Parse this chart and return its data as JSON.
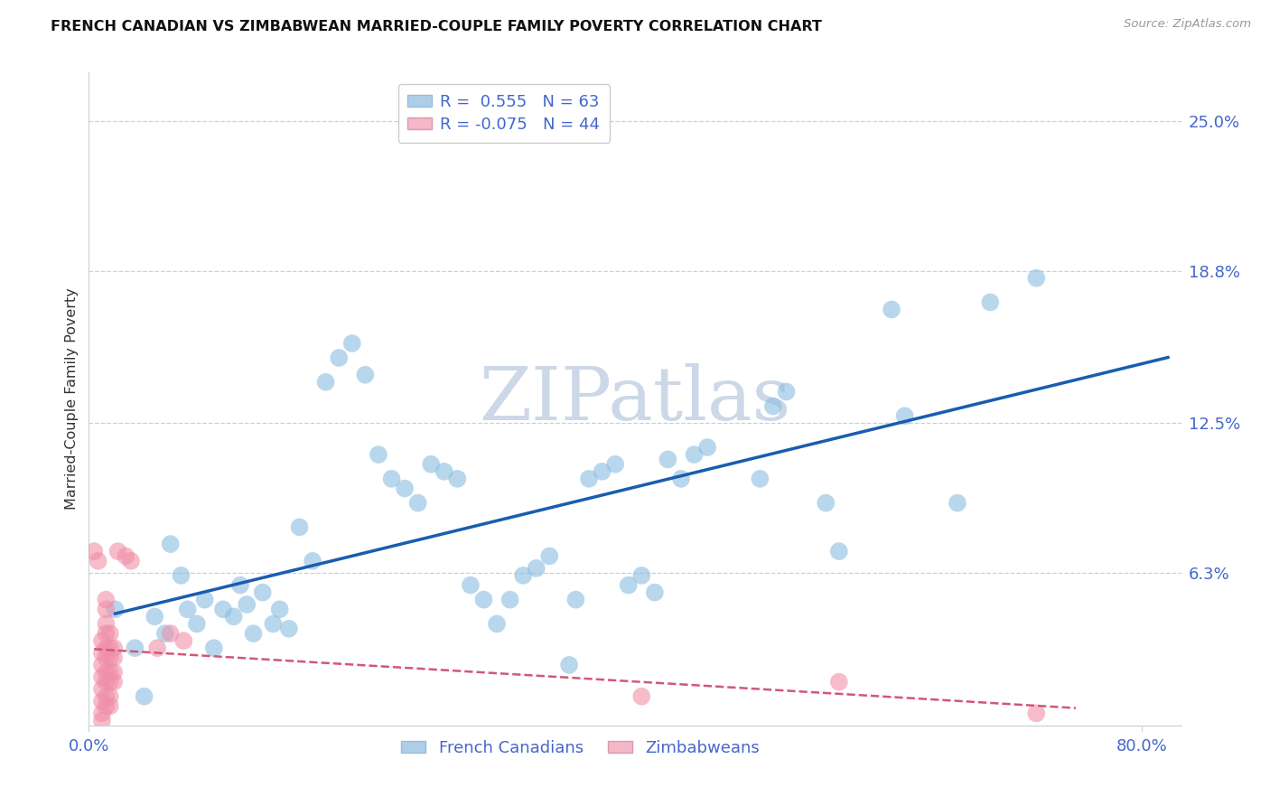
{
  "title": "FRENCH CANADIAN VS ZIMBABWEAN MARRIED-COUPLE FAMILY POVERTY CORRELATION CHART",
  "source": "Source: ZipAtlas.com",
  "ylabel_label": "Married-Couple Family Poverty",
  "ylabel_values": [
    0.0,
    6.3,
    12.5,
    18.8,
    25.0
  ],
  "xlabel_values": [
    0.0,
    80.0
  ],
  "blue_scatter_color": "#8bbde0",
  "pink_scatter_color": "#f090a8",
  "blue_line_color": "#1a5cb0",
  "pink_line_color": "#d05878",
  "legend_blue_fill": "#aecde8",
  "legend_pink_fill": "#f4b8c8",
  "blue_scatter": [
    [
      2.0,
      4.8
    ],
    [
      3.5,
      3.2
    ],
    [
      4.2,
      1.2
    ],
    [
      5.0,
      4.5
    ],
    [
      5.8,
      3.8
    ],
    [
      6.2,
      7.5
    ],
    [
      7.0,
      6.2
    ],
    [
      7.5,
      4.8
    ],
    [
      8.2,
      4.2
    ],
    [
      8.8,
      5.2
    ],
    [
      9.5,
      3.2
    ],
    [
      10.2,
      4.8
    ],
    [
      11.0,
      4.5
    ],
    [
      11.5,
      5.8
    ],
    [
      12.0,
      5.0
    ],
    [
      12.5,
      3.8
    ],
    [
      13.2,
      5.5
    ],
    [
      14.0,
      4.2
    ],
    [
      14.5,
      4.8
    ],
    [
      15.2,
      4.0
    ],
    [
      16.0,
      8.2
    ],
    [
      17.0,
      6.8
    ],
    [
      18.0,
      14.2
    ],
    [
      19.0,
      15.2
    ],
    [
      20.0,
      15.8
    ],
    [
      21.0,
      14.5
    ],
    [
      22.0,
      11.2
    ],
    [
      23.0,
      10.2
    ],
    [
      24.0,
      9.8
    ],
    [
      25.0,
      9.2
    ],
    [
      26.0,
      10.8
    ],
    [
      27.0,
      10.5
    ],
    [
      28.0,
      10.2
    ],
    [
      29.0,
      5.8
    ],
    [
      30.0,
      5.2
    ],
    [
      31.0,
      4.2
    ],
    [
      32.0,
      5.2
    ],
    [
      33.0,
      6.2
    ],
    [
      34.0,
      6.5
    ],
    [
      35.0,
      7.0
    ],
    [
      36.5,
      2.5
    ],
    [
      37.0,
      5.2
    ],
    [
      38.0,
      10.2
    ],
    [
      39.0,
      10.5
    ],
    [
      40.0,
      10.8
    ],
    [
      41.0,
      5.8
    ],
    [
      42.0,
      6.2
    ],
    [
      43.0,
      5.5
    ],
    [
      44.0,
      11.0
    ],
    [
      45.0,
      10.2
    ],
    [
      46.0,
      11.2
    ],
    [
      47.0,
      11.5
    ],
    [
      51.0,
      10.2
    ],
    [
      52.0,
      13.2
    ],
    [
      53.0,
      13.8
    ],
    [
      56.0,
      9.2
    ],
    [
      57.0,
      7.2
    ],
    [
      61.0,
      17.2
    ],
    [
      62.0,
      12.8
    ],
    [
      66.0,
      9.2
    ],
    [
      68.5,
      17.5
    ],
    [
      72.0,
      18.5
    ]
  ],
  "pink_scatter": [
    [
      0.4,
      7.2
    ],
    [
      0.7,
      6.8
    ],
    [
      1.0,
      3.5
    ],
    [
      1.0,
      3.0
    ],
    [
      1.0,
      2.5
    ],
    [
      1.0,
      2.0
    ],
    [
      1.0,
      1.5
    ],
    [
      1.0,
      1.0
    ],
    [
      1.0,
      0.5
    ],
    [
      1.0,
      0.2
    ],
    [
      1.3,
      5.2
    ],
    [
      1.3,
      4.8
    ],
    [
      1.3,
      4.2
    ],
    [
      1.3,
      3.8
    ],
    [
      1.3,
      3.2
    ],
    [
      1.3,
      2.8
    ],
    [
      1.3,
      2.2
    ],
    [
      1.3,
      1.8
    ],
    [
      1.3,
      1.2
    ],
    [
      1.3,
      0.8
    ],
    [
      1.6,
      3.8
    ],
    [
      1.6,
      3.2
    ],
    [
      1.6,
      2.8
    ],
    [
      1.6,
      2.2
    ],
    [
      1.6,
      1.8
    ],
    [
      1.6,
      1.2
    ],
    [
      1.6,
      0.8
    ],
    [
      1.9,
      3.2
    ],
    [
      1.9,
      2.8
    ],
    [
      1.9,
      2.2
    ],
    [
      1.9,
      1.8
    ],
    [
      2.2,
      7.2
    ],
    [
      2.8,
      7.0
    ],
    [
      3.2,
      6.8
    ],
    [
      5.2,
      3.2
    ],
    [
      6.2,
      3.8
    ],
    [
      7.2,
      3.5
    ],
    [
      42.0,
      1.2
    ],
    [
      57.0,
      1.8
    ],
    [
      72.0,
      0.5
    ]
  ],
  "xlim": [
    0.0,
    83.0
  ],
  "ylim": [
    0.0,
    27.0
  ],
  "grid_y_values": [
    0.0,
    6.3,
    12.5,
    18.8,
    25.0
  ],
  "background_color": "#ffffff",
  "watermark_text": "ZIPatlas",
  "watermark_color": "#ccd8e8",
  "title_color": "#111111",
  "axis_label_color": "#333333",
  "tick_label_color": "#4466cc",
  "source_color": "#999999",
  "grid_color": "#c8d0dc",
  "border_color": "#c8d0dc"
}
